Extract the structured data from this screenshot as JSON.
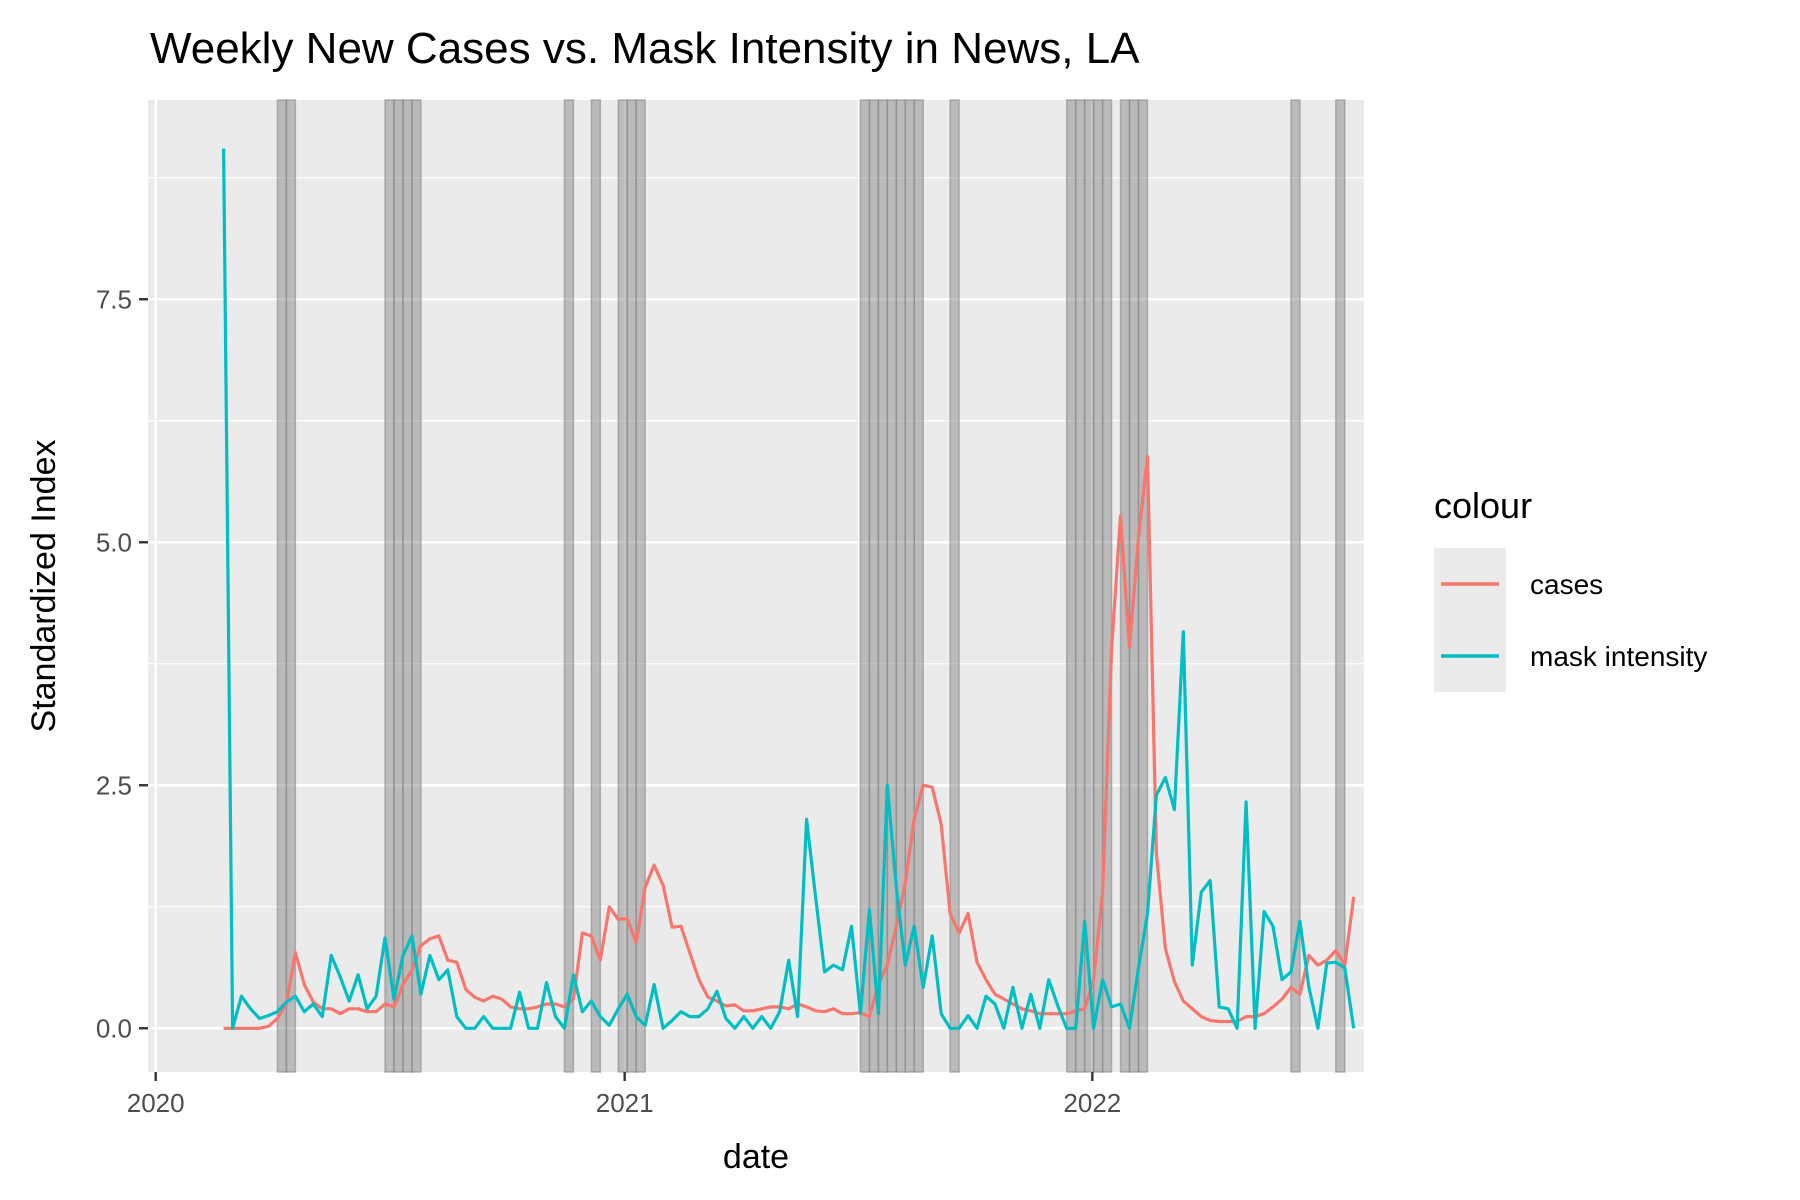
{
  "chart_data": {
    "type": "line",
    "title": "Weekly New Cases vs. Mask Intensity in News, LA",
    "xlabel": "date",
    "ylabel": "Standardized Index",
    "x_ticks": [
      {
        "label": "2020",
        "date": "2020-01-01"
      },
      {
        "label": "2021",
        "date": "2021-01-01"
      },
      {
        "label": "2022",
        "date": "2022-01-01"
      }
    ],
    "y_ticks": [
      {
        "label": "0.0",
        "value": 0
      },
      {
        "label": "2.5",
        "value": 2.5
      },
      {
        "label": "5.0",
        "value": 5
      },
      {
        "label": "7.5",
        "value": 7.5
      }
    ],
    "xlim": [
      "2019-12-26",
      "2022-08-01"
    ],
    "ylim": [
      -0.45,
      9.55
    ],
    "grid": true,
    "legend": {
      "title": "colour",
      "position": "right"
    },
    "highlight_weeks": [
      "2020-04-05",
      "2020-04-12",
      "2020-06-28",
      "2020-07-05",
      "2020-07-12",
      "2020-07-19",
      "2020-11-15",
      "2020-12-06",
      "2020-12-27",
      "2021-01-03",
      "2021-01-10",
      "2021-07-04",
      "2021-07-11",
      "2021-07-18",
      "2021-07-25",
      "2021-08-01",
      "2021-08-08",
      "2021-08-15",
      "2021-09-12",
      "2021-12-12",
      "2021-12-19",
      "2021-12-26",
      "2022-01-02",
      "2022-01-09",
      "2022-01-23",
      "2022-01-30",
      "2022-02-06",
      "2022-06-05",
      "2022-07-10"
    ],
    "series": [
      {
        "name": "cases",
        "color": "#F8766D",
        "start": "2020-02-23",
        "values": [
          0,
          0,
          0,
          0,
          0,
          0.02,
          0.1,
          0.25,
          0.78,
          0.45,
          0.27,
          0.2,
          0.2,
          0.15,
          0.2,
          0.2,
          0.17,
          0.17,
          0.25,
          0.22,
          0.45,
          0.6,
          0.85,
          0.92,
          0.95,
          0.7,
          0.68,
          0.4,
          0.32,
          0.28,
          0.33,
          0.3,
          0.22,
          0.2,
          0.2,
          0.22,
          0.25,
          0.25,
          0.22,
          0.3,
          0.98,
          0.95,
          0.7,
          1.25,
          1.12,
          1.13,
          0.88,
          1.45,
          1.68,
          1.47,
          1.04,
          1.05,
          0.77,
          0.5,
          0.32,
          0.28,
          0.23,
          0.24,
          0.18,
          0.18,
          0.2,
          0.22,
          0.22,
          0.2,
          0.25,
          0.22,
          0.18,
          0.17,
          0.2,
          0.15,
          0.15,
          0.16,
          0.12,
          0.45,
          0.65,
          1.05,
          1.5,
          2.15,
          2.5,
          2.48,
          2.1,
          1.18,
          0.98,
          1.18,
          0.68,
          0.5,
          0.35,
          0.3,
          0.25,
          0.2,
          0.18,
          0.15,
          0.15,
          0.15,
          0.15,
          0.18,
          0.2,
          0.5,
          1.4,
          3.9,
          5.27,
          3.92,
          5.05,
          5.88,
          1.8,
          0.82,
          0.48,
          0.28,
          0.2,
          0.12,
          0.08,
          0.07,
          0.07,
          0.07,
          0.12,
          0.12,
          0.15,
          0.22,
          0.3,
          0.42,
          0.35,
          0.75,
          0.65,
          0.7,
          0.8,
          0.65,
          1.35
        ]
      },
      {
        "name": "mask intensity",
        "color": "#00BFC4",
        "start": "2020-02-23",
        "values": [
          9.05,
          0,
          0.33,
          0.2,
          0.1,
          0.13,
          0.17,
          0.27,
          0.33,
          0.17,
          0.25,
          0.12,
          0.75,
          0.53,
          0.28,
          0.55,
          0.2,
          0.33,
          0.93,
          0.3,
          0.75,
          0.95,
          0.35,
          0.75,
          0.5,
          0.6,
          0.12,
          0,
          0,
          0.12,
          0,
          0,
          0,
          0.37,
          0,
          0,
          0.47,
          0.12,
          0,
          0.55,
          0.17,
          0.28,
          0.12,
          0.03,
          0.2,
          0.35,
          0.12,
          0.03,
          0.45,
          0,
          0.08,
          0.17,
          0.12,
          0.12,
          0.2,
          0.38,
          0.1,
          0,
          0.12,
          0,
          0.12,
          0,
          0.17,
          0.7,
          0.12,
          2.15,
          1.35,
          0.58,
          0.65,
          0.6,
          1.05,
          0.15,
          1.22,
          0.15,
          2.5,
          1.45,
          0.65,
          1.05,
          0.42,
          0.95,
          0.15,
          0,
          0,
          0.13,
          0,
          0.33,
          0.25,
          0,
          0.42,
          0,
          0.35,
          0,
          0.5,
          0.23,
          0,
          0,
          1.1,
          0,
          0.5,
          0.22,
          0.25,
          0,
          0.62,
          1.18,
          2.4,
          2.58,
          2.25,
          4.08,
          0.65,
          1.4,
          1.52,
          0.22,
          0.2,
          0,
          2.33,
          0,
          1.2,
          1.05,
          0.5,
          0.58,
          1.1,
          0.42,
          0,
          0.67,
          0.68,
          0.62,
          0
        ]
      }
    ]
  }
}
